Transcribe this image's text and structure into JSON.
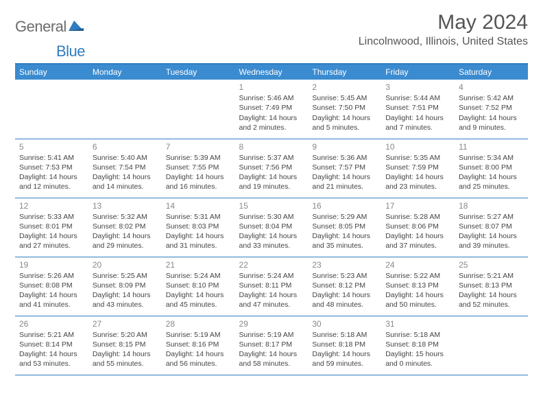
{
  "logo": {
    "general": "General",
    "blue": "Blue"
  },
  "title": "May 2024",
  "location": "Lincolnwood, Illinois, United States",
  "colors": {
    "header_bg": "#3a8bd0",
    "rule": "#2f7dc0",
    "text": "#444444",
    "muted": "#888888",
    "logo_gray": "#6b6b6b",
    "logo_blue": "#2f7dc0",
    "background": "#ffffff"
  },
  "day_headers": [
    "Sunday",
    "Monday",
    "Tuesday",
    "Wednesday",
    "Thursday",
    "Friday",
    "Saturday"
  ],
  "weeks": [
    [
      null,
      null,
      null,
      {
        "n": "1",
        "sr": "5:46 AM",
        "ss": "7:49 PM",
        "dl": "14 hours and 2 minutes."
      },
      {
        "n": "2",
        "sr": "5:45 AM",
        "ss": "7:50 PM",
        "dl": "14 hours and 5 minutes."
      },
      {
        "n": "3",
        "sr": "5:44 AM",
        "ss": "7:51 PM",
        "dl": "14 hours and 7 minutes."
      },
      {
        "n": "4",
        "sr": "5:42 AM",
        "ss": "7:52 PM",
        "dl": "14 hours and 9 minutes."
      }
    ],
    [
      {
        "n": "5",
        "sr": "5:41 AM",
        "ss": "7:53 PM",
        "dl": "14 hours and 12 minutes."
      },
      {
        "n": "6",
        "sr": "5:40 AM",
        "ss": "7:54 PM",
        "dl": "14 hours and 14 minutes."
      },
      {
        "n": "7",
        "sr": "5:39 AM",
        "ss": "7:55 PM",
        "dl": "14 hours and 16 minutes."
      },
      {
        "n": "8",
        "sr": "5:37 AM",
        "ss": "7:56 PM",
        "dl": "14 hours and 19 minutes."
      },
      {
        "n": "9",
        "sr": "5:36 AM",
        "ss": "7:57 PM",
        "dl": "14 hours and 21 minutes."
      },
      {
        "n": "10",
        "sr": "5:35 AM",
        "ss": "7:59 PM",
        "dl": "14 hours and 23 minutes."
      },
      {
        "n": "11",
        "sr": "5:34 AM",
        "ss": "8:00 PM",
        "dl": "14 hours and 25 minutes."
      }
    ],
    [
      {
        "n": "12",
        "sr": "5:33 AM",
        "ss": "8:01 PM",
        "dl": "14 hours and 27 minutes."
      },
      {
        "n": "13",
        "sr": "5:32 AM",
        "ss": "8:02 PM",
        "dl": "14 hours and 29 minutes."
      },
      {
        "n": "14",
        "sr": "5:31 AM",
        "ss": "8:03 PM",
        "dl": "14 hours and 31 minutes."
      },
      {
        "n": "15",
        "sr": "5:30 AM",
        "ss": "8:04 PM",
        "dl": "14 hours and 33 minutes."
      },
      {
        "n": "16",
        "sr": "5:29 AM",
        "ss": "8:05 PM",
        "dl": "14 hours and 35 minutes."
      },
      {
        "n": "17",
        "sr": "5:28 AM",
        "ss": "8:06 PM",
        "dl": "14 hours and 37 minutes."
      },
      {
        "n": "18",
        "sr": "5:27 AM",
        "ss": "8:07 PM",
        "dl": "14 hours and 39 minutes."
      }
    ],
    [
      {
        "n": "19",
        "sr": "5:26 AM",
        "ss": "8:08 PM",
        "dl": "14 hours and 41 minutes."
      },
      {
        "n": "20",
        "sr": "5:25 AM",
        "ss": "8:09 PM",
        "dl": "14 hours and 43 minutes."
      },
      {
        "n": "21",
        "sr": "5:24 AM",
        "ss": "8:10 PM",
        "dl": "14 hours and 45 minutes."
      },
      {
        "n": "22",
        "sr": "5:24 AM",
        "ss": "8:11 PM",
        "dl": "14 hours and 47 minutes."
      },
      {
        "n": "23",
        "sr": "5:23 AM",
        "ss": "8:12 PM",
        "dl": "14 hours and 48 minutes."
      },
      {
        "n": "24",
        "sr": "5:22 AM",
        "ss": "8:13 PM",
        "dl": "14 hours and 50 minutes."
      },
      {
        "n": "25",
        "sr": "5:21 AM",
        "ss": "8:13 PM",
        "dl": "14 hours and 52 minutes."
      }
    ],
    [
      {
        "n": "26",
        "sr": "5:21 AM",
        "ss": "8:14 PM",
        "dl": "14 hours and 53 minutes."
      },
      {
        "n": "27",
        "sr": "5:20 AM",
        "ss": "8:15 PM",
        "dl": "14 hours and 55 minutes."
      },
      {
        "n": "28",
        "sr": "5:19 AM",
        "ss": "8:16 PM",
        "dl": "14 hours and 56 minutes."
      },
      {
        "n": "29",
        "sr": "5:19 AM",
        "ss": "8:17 PM",
        "dl": "14 hours and 58 minutes."
      },
      {
        "n": "30",
        "sr": "5:18 AM",
        "ss": "8:18 PM",
        "dl": "14 hours and 59 minutes."
      },
      {
        "n": "31",
        "sr": "5:18 AM",
        "ss": "8:18 PM",
        "dl": "15 hours and 0 minutes."
      },
      null
    ]
  ],
  "labels": {
    "sunrise": "Sunrise:",
    "sunset": "Sunset:",
    "daylight": "Daylight:"
  }
}
